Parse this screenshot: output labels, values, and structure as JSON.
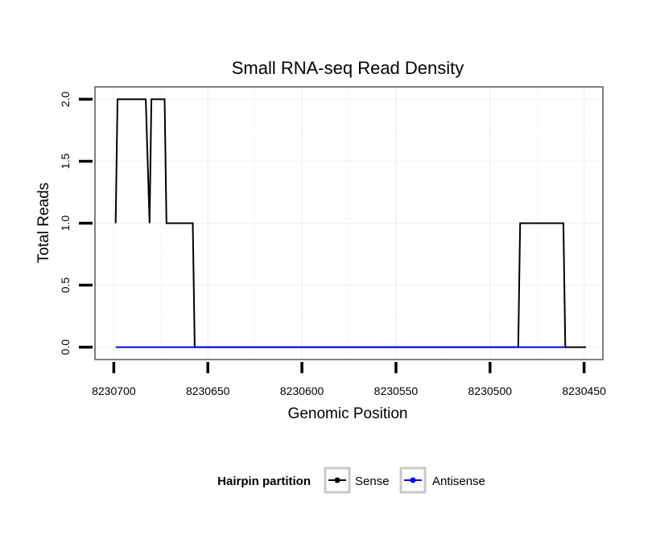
{
  "chart_data": {
    "type": "line",
    "title": "Small RNA-seq Read Density",
    "xlabel": "Genomic Position",
    "ylabel": "Total Reads",
    "x_reversed": true,
    "xlim": [
      8230710,
      8230440
    ],
    "ylim": [
      -0.1,
      2.1
    ],
    "x_ticks": [
      8230700,
      8230650,
      8230600,
      8230550,
      8230500,
      8230450
    ],
    "x_tick_labels": [
      "8230700",
      "8230650",
      "8230600",
      "8230550",
      "8230500",
      "8230450"
    ],
    "y_ticks": [
      0.0,
      0.5,
      1.0,
      1.5,
      2.0
    ],
    "y_tick_labels": [
      "0.0",
      "0.5",
      "1.0",
      "1.5",
      "2.0"
    ],
    "grid": true,
    "legend": {
      "title": "Hairpin partition",
      "position": "bottom",
      "entries": [
        "Sense",
        "Antisense"
      ]
    },
    "series": [
      {
        "name": "Sense",
        "color": "#000000",
        "x": [
          8230699,
          8230698,
          8230683,
          8230681,
          8230680,
          8230673,
          8230672,
          8230658,
          8230657,
          8230485,
          8230484,
          8230461,
          8230460,
          8230449
        ],
        "y": [
          1,
          2,
          2,
          1,
          2,
          2,
          1,
          1,
          0,
          0,
          1,
          1,
          0,
          0
        ]
      },
      {
        "name": "Antisense",
        "color": "#0000ff",
        "x": [
          8230699,
          8230657,
          8230485,
          8230460
        ],
        "y": [
          0,
          0,
          0,
          0
        ]
      }
    ]
  }
}
